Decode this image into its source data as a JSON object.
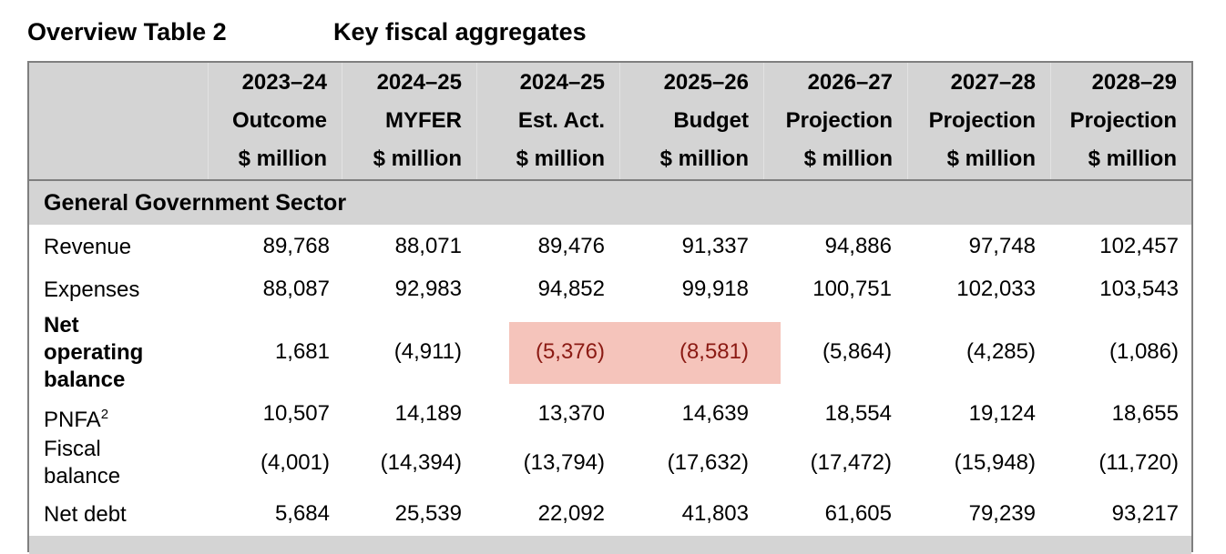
{
  "title": {
    "table_no": "Overview Table 2",
    "caption": "Key fiscal aggregates"
  },
  "columns": [
    {
      "year": "2023–24",
      "type": "Outcome",
      "unit": "$ million"
    },
    {
      "year": "2024–25",
      "type": "MYFER",
      "unit": "$ million"
    },
    {
      "year": "2024–25",
      "type": "Est. Act.",
      "unit": "$ million"
    },
    {
      "year": "2025–26",
      "type": "Budget",
      "unit": "$ million"
    },
    {
      "year": "2026–27",
      "type": "Projection",
      "unit": "$ million"
    },
    {
      "year": "2027–28",
      "type": "Projection",
      "unit": "$ million"
    },
    {
      "year": "2028–29",
      "type": "Projection",
      "unit": "$ million"
    }
  ],
  "sector": "General Government Sector",
  "rows": [
    {
      "label": "Revenue",
      "values": [
        "89,768",
        "88,071",
        "89,476",
        "91,337",
        "94,886",
        "97,748",
        "102,457"
      ]
    },
    {
      "label": "Expenses",
      "values": [
        "88,087",
        "92,983",
        "94,852",
        "99,918",
        "100,751",
        "102,033",
        "103,543"
      ]
    },
    {
      "label_lines": [
        "Net",
        "operating",
        "balance"
      ],
      "values": [
        "1,681",
        "(4,911)",
        "(5,376)",
        "(8,581)",
        "(5,864)",
        "(4,285)",
        "(1,086)"
      ]
    },
    {
      "label": "PNFA",
      "sup": "2",
      "values": [
        "10,507",
        "14,189",
        "13,370",
        "14,639",
        "18,554",
        "19,124",
        "18,655"
      ]
    },
    {
      "label_lines": [
        "Fiscal",
        "balance"
      ],
      "values": [
        "(4,001)",
        "(14,394)",
        "(13,794)",
        "(17,632)",
        "(17,472)",
        "(15,948)",
        "(11,720)"
      ]
    },
    {
      "label": "Net debt",
      "values": [
        "5,684",
        "25,539",
        "22,092",
        "41,803",
        "61,605",
        "79,239",
        "93,217"
      ]
    }
  ],
  "colors": {
    "header_bg": "#d4d4d4",
    "highlight_bg": "#f5c4bb",
    "highlight_text": "#8b1a13",
    "border": "#7f7f7f"
  }
}
